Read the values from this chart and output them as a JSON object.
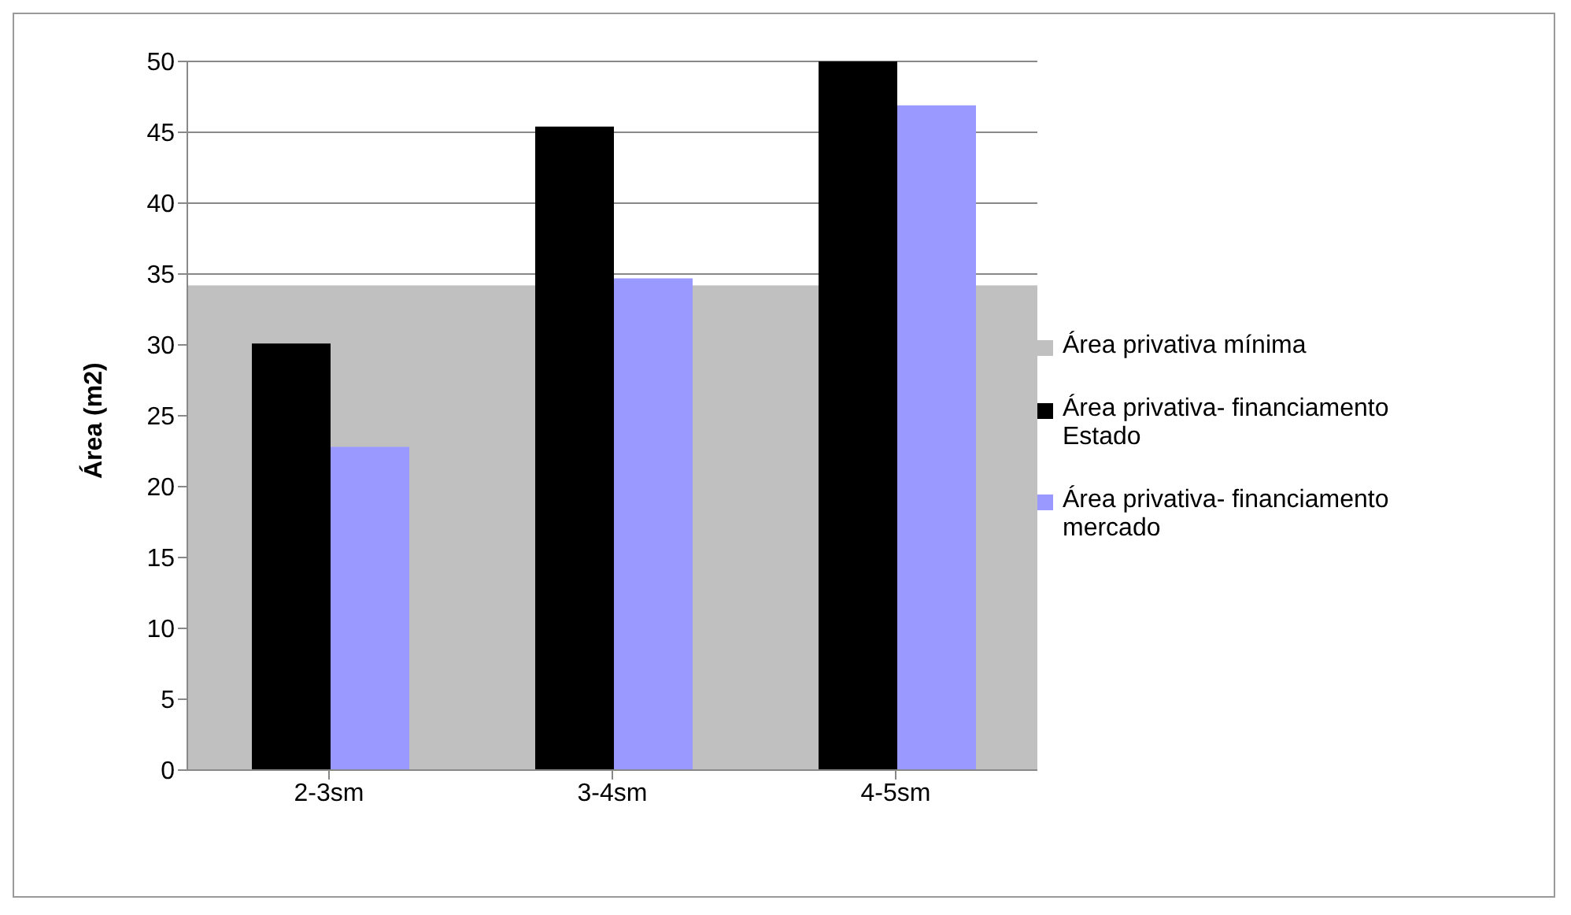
{
  "chart_data": {
    "type": "bar",
    "ylabel": "Área (m2)",
    "categories": [
      "2-3sm",
      "3-4sm",
      "4-5sm"
    ],
    "series": [
      {
        "name": "Área privativa mínima",
        "color": "#c0c0c0",
        "values": [
          34.2,
          34.2,
          34.2
        ]
      },
      {
        "name": "Área privativa- financiamento Estado",
        "color": "#000000",
        "values": [
          30.1,
          45.4,
          50
        ]
      },
      {
        "name": "Área privativa- financiamento mercado",
        "color": "#9999ff",
        "values": [
          22.8,
          34.7,
          46.9
        ]
      }
    ],
    "ylim": [
      0,
      50
    ],
    "yticks": [
      0,
      5,
      10,
      15,
      20,
      25,
      30,
      35,
      40,
      45,
      50
    ],
    "grid": "y",
    "legend": "right"
  }
}
